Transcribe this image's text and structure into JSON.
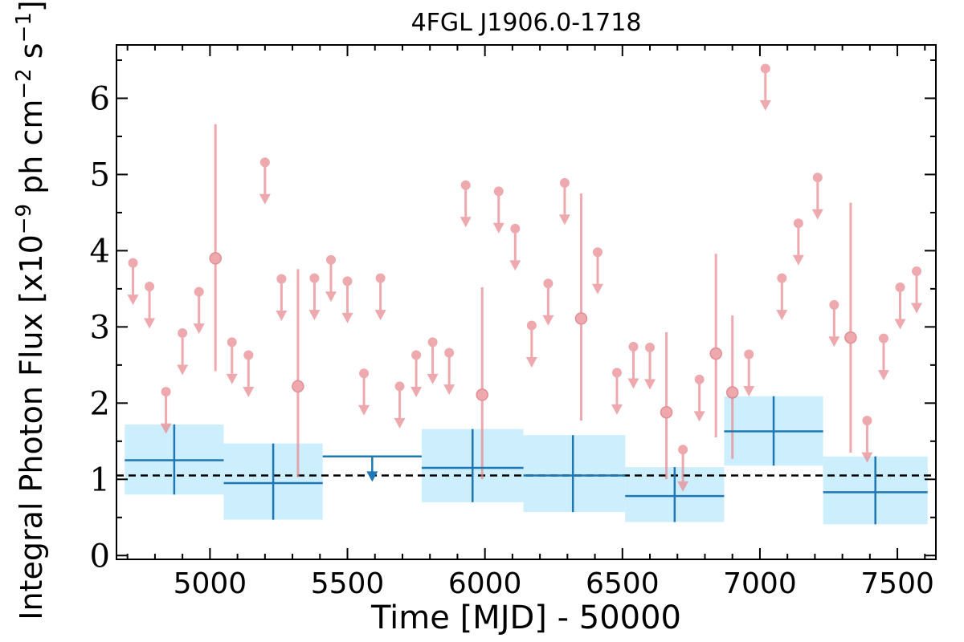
{
  "chart_data": {
    "type": "scatter",
    "title": "4FGL J1906.0-1718",
    "xlabel": "Time [MJD] - 50000",
    "ylabel": "Integral Photon Flux [x10",
    "ylabel_exp": "−9",
    "ylabel_rest": " ph cm",
    "ylabel_exp2": "−2",
    "ylabel_rest2": " s",
    "ylabel_exp3": "−1",
    "ylabel_end": "]",
    "xlim": [
      4660,
      7640
    ],
    "ylim": [
      -0.05,
      6.7
    ],
    "xticks": [
      5000,
      5500,
      6000,
      6500,
      7000,
      7500
    ],
    "yticks": [
      0,
      1,
      2,
      3,
      4,
      5,
      6
    ],
    "reference_line": 1.05,
    "colors": {
      "short_bins": "#e8898f",
      "long_bins": "#1f77b4",
      "band": "#cdeefc",
      "reference": "#000000"
    },
    "long_bin_points": [
      {
        "x": 4870,
        "x0": 4690,
        "x1": 5050,
        "y": 1.25,
        "lo": 0.8,
        "hi": 1.72,
        "ul": false
      },
      {
        "x": 5230,
        "x0": 5050,
        "x1": 5410,
        "y": 0.95,
        "lo": 0.47,
        "hi": 1.47,
        "ul": false
      },
      {
        "x": 5590,
        "x0": 5410,
        "x1": 5770,
        "y": 1.3,
        "ul": true
      },
      {
        "x": 5955,
        "x0": 5770,
        "x1": 6140,
        "y": 1.15,
        "lo": 0.7,
        "hi": 1.66,
        "ul": false
      },
      {
        "x": 6320,
        "x0": 6140,
        "x1": 6510,
        "y": 1.05,
        "lo": 0.57,
        "hi": 1.58,
        "ul": false
      },
      {
        "x": 6690,
        "x0": 6510,
        "x1": 6870,
        "y": 0.78,
        "lo": 0.44,
        "hi": 1.16,
        "ul": false
      },
      {
        "x": 7050,
        "x0": 6870,
        "x1": 7230,
        "y": 1.63,
        "lo": 1.18,
        "hi": 2.09,
        "ul": false
      },
      {
        "x": 7420,
        "x0": 7230,
        "x1": 7610,
        "y": 0.83,
        "lo": 0.41,
        "hi": 1.3,
        "ul": false
      }
    ],
    "short_bin_points": [
      {
        "x": 4720,
        "y": 3.84,
        "ul": true
      },
      {
        "x": 4780,
        "y": 3.53,
        "ul": true
      },
      {
        "x": 4840,
        "y": 2.15,
        "ul": true
      },
      {
        "x": 4900,
        "y": 2.92,
        "ul": true
      },
      {
        "x": 4960,
        "y": 3.46,
        "ul": true
      },
      {
        "x": 5020,
        "y": 3.9,
        "ul": false,
        "lo": 2.42,
        "hi": 5.66
      },
      {
        "x": 5080,
        "y": 2.8,
        "ul": true
      },
      {
        "x": 5140,
        "y": 2.63,
        "ul": true
      },
      {
        "x": 5200,
        "y": 5.16,
        "ul": true
      },
      {
        "x": 5260,
        "y": 3.63,
        "ul": true
      },
      {
        "x": 5320,
        "y": 2.22,
        "ul": false,
        "lo": 1.03,
        "hi": 3.76
      },
      {
        "x": 5380,
        "y": 3.64,
        "ul": true
      },
      {
        "x": 5440,
        "y": 3.88,
        "ul": true
      },
      {
        "x": 5500,
        "y": 3.6,
        "ul": true
      },
      {
        "x": 5560,
        "y": 2.39,
        "ul": true
      },
      {
        "x": 5620,
        "y": 3.64,
        "ul": true
      },
      {
        "x": 5690,
        "y": 2.22,
        "ul": true
      },
      {
        "x": 5750,
        "y": 2.63,
        "ul": true
      },
      {
        "x": 5810,
        "y": 2.8,
        "ul": true
      },
      {
        "x": 5870,
        "y": 2.66,
        "ul": true
      },
      {
        "x": 5930,
        "y": 4.86,
        "ul": true
      },
      {
        "x": 5990,
        "y": 2.11,
        "ul": false,
        "lo": 1.0,
        "hi": 3.52
      },
      {
        "x": 6050,
        "y": 4.78,
        "ul": true
      },
      {
        "x": 6110,
        "y": 4.29,
        "ul": true
      },
      {
        "x": 6170,
        "y": 3.02,
        "ul": true
      },
      {
        "x": 6230,
        "y": 3.57,
        "ul": true
      },
      {
        "x": 6290,
        "y": 4.89,
        "ul": true
      },
      {
        "x": 6350,
        "y": 3.11,
        "ul": false,
        "lo": 1.77,
        "hi": 4.75
      },
      {
        "x": 6410,
        "y": 3.98,
        "ul": true
      },
      {
        "x": 6480,
        "y": 2.4,
        "ul": true
      },
      {
        "x": 6540,
        "y": 2.74,
        "ul": true
      },
      {
        "x": 6600,
        "y": 2.73,
        "ul": true
      },
      {
        "x": 6660,
        "y": 1.88,
        "ul": false,
        "lo": 1.0,
        "hi": 2.93
      },
      {
        "x": 6720,
        "y": 1.39,
        "ul": true
      },
      {
        "x": 6780,
        "y": 2.31,
        "ul": true
      },
      {
        "x": 6840,
        "y": 2.65,
        "ul": false,
        "lo": 1.55,
        "hi": 3.96
      },
      {
        "x": 6900,
        "y": 2.14,
        "ul": false,
        "lo": 1.27,
        "hi": 3.15
      },
      {
        "x": 6960,
        "y": 2.64,
        "ul": true
      },
      {
        "x": 7020,
        "y": 6.39,
        "ul": true
      },
      {
        "x": 7080,
        "y": 3.64,
        "ul": true
      },
      {
        "x": 7140,
        "y": 4.36,
        "ul": true
      },
      {
        "x": 7210,
        "y": 4.96,
        "ul": true
      },
      {
        "x": 7270,
        "y": 3.29,
        "ul": true
      },
      {
        "x": 7330,
        "y": 2.86,
        "ul": false,
        "lo": 1.35,
        "hi": 4.63
      },
      {
        "x": 7390,
        "y": 1.77,
        "ul": true
      },
      {
        "x": 7450,
        "y": 2.85,
        "ul": true
      },
      {
        "x": 7510,
        "y": 3.52,
        "ul": true
      },
      {
        "x": 7570,
        "y": 3.73,
        "ul": true
      }
    ]
  }
}
